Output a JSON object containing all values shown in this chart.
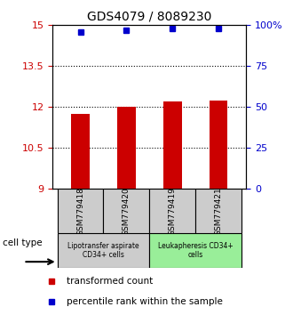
{
  "title": "GDS4079 / 8089230",
  "samples": [
    "GSM779418",
    "GSM779420",
    "GSM779419",
    "GSM779421"
  ],
  "bar_values": [
    11.75,
    12.0,
    12.2,
    12.25
  ],
  "percentile_values": [
    96,
    97,
    98,
    98
  ],
  "bar_color": "#cc0000",
  "dot_color": "#0000cc",
  "ylim_left": [
    9,
    15
  ],
  "ylim_right": [
    0,
    100
  ],
  "yticks_left": [
    9,
    10.5,
    12,
    13.5,
    15
  ],
  "ytick_labels_left": [
    "9",
    "10.5",
    "12",
    "13.5",
    "15"
  ],
  "yticks_right": [
    0,
    25,
    50,
    75,
    100
  ],
  "ytick_labels_right": [
    "0",
    "25",
    "50",
    "75",
    "100%"
  ],
  "dotted_lines": [
    10.5,
    12,
    13.5
  ],
  "groups": [
    {
      "label": "Lipotransfer aspirate\nCD34+ cells",
      "start": 0,
      "end": 2,
      "color": "#cccccc"
    },
    {
      "label": "Leukapheresis CD34+\ncells",
      "start": 2,
      "end": 4,
      "color": "#99ee99"
    }
  ],
  "cell_type_label": "cell type",
  "legend_items": [
    {
      "color": "#cc0000",
      "label": "transformed count"
    },
    {
      "color": "#0000cc",
      "label": "percentile rank within the sample"
    }
  ],
  "background_color": "#ffffff",
  "bar_width": 0.4,
  "dot_size": 5,
  "title_fontsize": 10,
  "tick_fontsize": 8,
  "legend_fontsize": 7.5
}
